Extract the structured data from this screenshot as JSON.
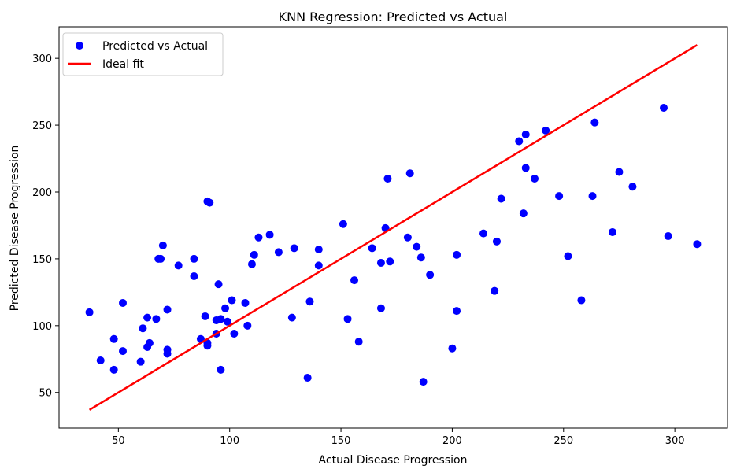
{
  "chart_data": {
    "type": "scatter",
    "title": "KNN Regression: Predicted vs Actual",
    "xlabel": "Actual Disease Progression",
    "ylabel": "Predicted Disease Progression",
    "xlim": [
      23.35,
      323.65
    ],
    "ylim": [
      23.35,
      323.65
    ],
    "xticks": [
      50,
      100,
      150,
      200,
      250,
      300
    ],
    "yticks": [
      50,
      100,
      150,
      200,
      250,
      300
    ],
    "grid": false,
    "legend_position": "top-left",
    "series": [
      {
        "name": "Predicted vs Actual",
        "kind": "scatter",
        "color": "#0000ff",
        "points": [
          [
            37,
            110
          ],
          [
            42,
            74
          ],
          [
            48,
            90
          ],
          [
            48,
            67
          ],
          [
            52,
            117
          ],
          [
            52,
            81
          ],
          [
            60,
            73
          ],
          [
            61,
            98
          ],
          [
            63,
            106
          ],
          [
            63,
            84
          ],
          [
            64,
            87
          ],
          [
            67,
            105
          ],
          [
            68,
            150
          ],
          [
            69,
            150
          ],
          [
            70,
            160
          ],
          [
            72,
            112
          ],
          [
            72,
            82
          ],
          [
            72,
            79
          ],
          [
            77,
            145
          ],
          [
            84,
            150
          ],
          [
            84,
            137
          ],
          [
            87,
            90
          ],
          [
            89,
            107
          ],
          [
            90,
            193
          ],
          [
            90,
            85
          ],
          [
            90,
            87
          ],
          [
            91,
            192
          ],
          [
            94,
            104
          ],
          [
            94,
            94
          ],
          [
            95,
            131
          ],
          [
            96,
            105
          ],
          [
            96,
            67
          ],
          [
            98,
            113
          ],
          [
            99,
            103
          ],
          [
            101,
            119
          ],
          [
            102,
            94
          ],
          [
            107,
            117
          ],
          [
            108,
            100
          ],
          [
            110,
            146
          ],
          [
            111,
            153
          ],
          [
            113,
            166
          ],
          [
            118,
            168
          ],
          [
            122,
            155
          ],
          [
            128,
            106
          ],
          [
            129,
            158
          ],
          [
            135,
            61
          ],
          [
            136,
            118
          ],
          [
            140,
            157
          ],
          [
            140,
            145
          ],
          [
            151,
            176
          ],
          [
            153,
            105
          ],
          [
            156,
            134
          ],
          [
            158,
            88
          ],
          [
            164,
            158
          ],
          [
            168,
            113
          ],
          [
            168,
            147
          ],
          [
            170,
            173
          ],
          [
            171,
            210
          ],
          [
            172,
            148
          ],
          [
            180,
            166
          ],
          [
            181,
            214
          ],
          [
            184,
            159
          ],
          [
            186,
            151
          ],
          [
            187,
            58
          ],
          [
            190,
            138
          ],
          [
            200,
            83
          ],
          [
            202,
            153
          ],
          [
            202,
            111
          ],
          [
            214,
            169
          ],
          [
            219,
            126
          ],
          [
            220,
            163
          ],
          [
            222,
            195
          ],
          [
            230,
            238
          ],
          [
            232,
            184
          ],
          [
            233,
            218
          ],
          [
            233,
            243
          ],
          [
            237,
            210
          ],
          [
            242,
            246
          ],
          [
            248,
            197
          ],
          [
            252,
            152
          ],
          [
            258,
            119
          ],
          [
            263,
            197
          ],
          [
            264,
            252
          ],
          [
            272,
            170
          ],
          [
            275,
            215
          ],
          [
            281,
            204
          ],
          [
            295,
            263
          ],
          [
            297,
            167
          ],
          [
            310,
            161
          ]
        ]
      },
      {
        "name": "Ideal fit",
        "kind": "line",
        "color": "#ff0000",
        "points": [
          [
            37,
            37
          ],
          [
            310,
            310
          ]
        ]
      }
    ]
  }
}
